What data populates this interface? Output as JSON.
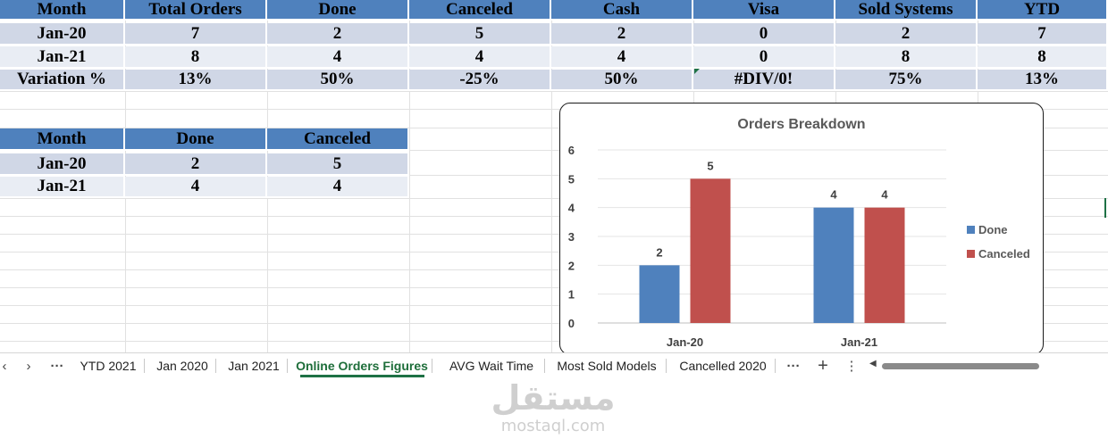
{
  "summary_table": {
    "headers": [
      "Month",
      "Total Orders",
      "Done",
      "Canceled",
      "Cash",
      "Visa",
      "Sold Systems",
      "YTD"
    ],
    "rows": [
      [
        "Jan-20",
        "7",
        "2",
        "5",
        "2",
        "0",
        "2",
        "7"
      ],
      [
        "Jan-21",
        "8",
        "4",
        "4",
        "4",
        "0",
        "8",
        "8"
      ],
      [
        "Variation %",
        "13%",
        "50%",
        "-25%",
        "50%",
        "#DIV/0!",
        "75%",
        "13%"
      ]
    ]
  },
  "small_table": {
    "headers": [
      "Month",
      "Done",
      "Canceled"
    ],
    "rows": [
      [
        "Jan-20",
        "2",
        "5"
      ],
      [
        "Jan-21",
        "4",
        "4"
      ]
    ]
  },
  "colors": {
    "header": "#4f81bd",
    "row_a": "#d0d7e6",
    "row_b": "#e9edf4",
    "done": "#4f81bd",
    "canceled": "#c0504d",
    "active_tab": "#1e7145"
  },
  "chart_data": {
    "type": "bar",
    "title": "Orders Breakdown",
    "categories": [
      "Jan-20",
      "Jan-21"
    ],
    "series": [
      {
        "name": "Done",
        "values": [
          2,
          4
        ],
        "color": "#4f81bd"
      },
      {
        "name": "Canceled",
        "values": [
          5,
          4
        ],
        "color": "#c0504d"
      }
    ],
    "ylim": [
      0,
      6
    ],
    "yticks": [
      0,
      1,
      2,
      3,
      4,
      5,
      6
    ],
    "grid": true,
    "legend": "right"
  },
  "tabbar": {
    "prev_label": "‹",
    "next_label": "›",
    "more_left_label": "···",
    "tabs": [
      "YTD 2021",
      "Jan 2020",
      "Jan 2021",
      "Online Orders Figures",
      "AVG Wait Time",
      "Most Sold Models",
      "Cancelled 2020"
    ],
    "active_tab": "Online Orders Figures",
    "more_right_label": "···",
    "add_label": "+",
    "options_label": "⋮",
    "scroll_left_label": "◀"
  },
  "watermark": {
    "arabic": "مستقل",
    "latin": "mostaql.com"
  }
}
